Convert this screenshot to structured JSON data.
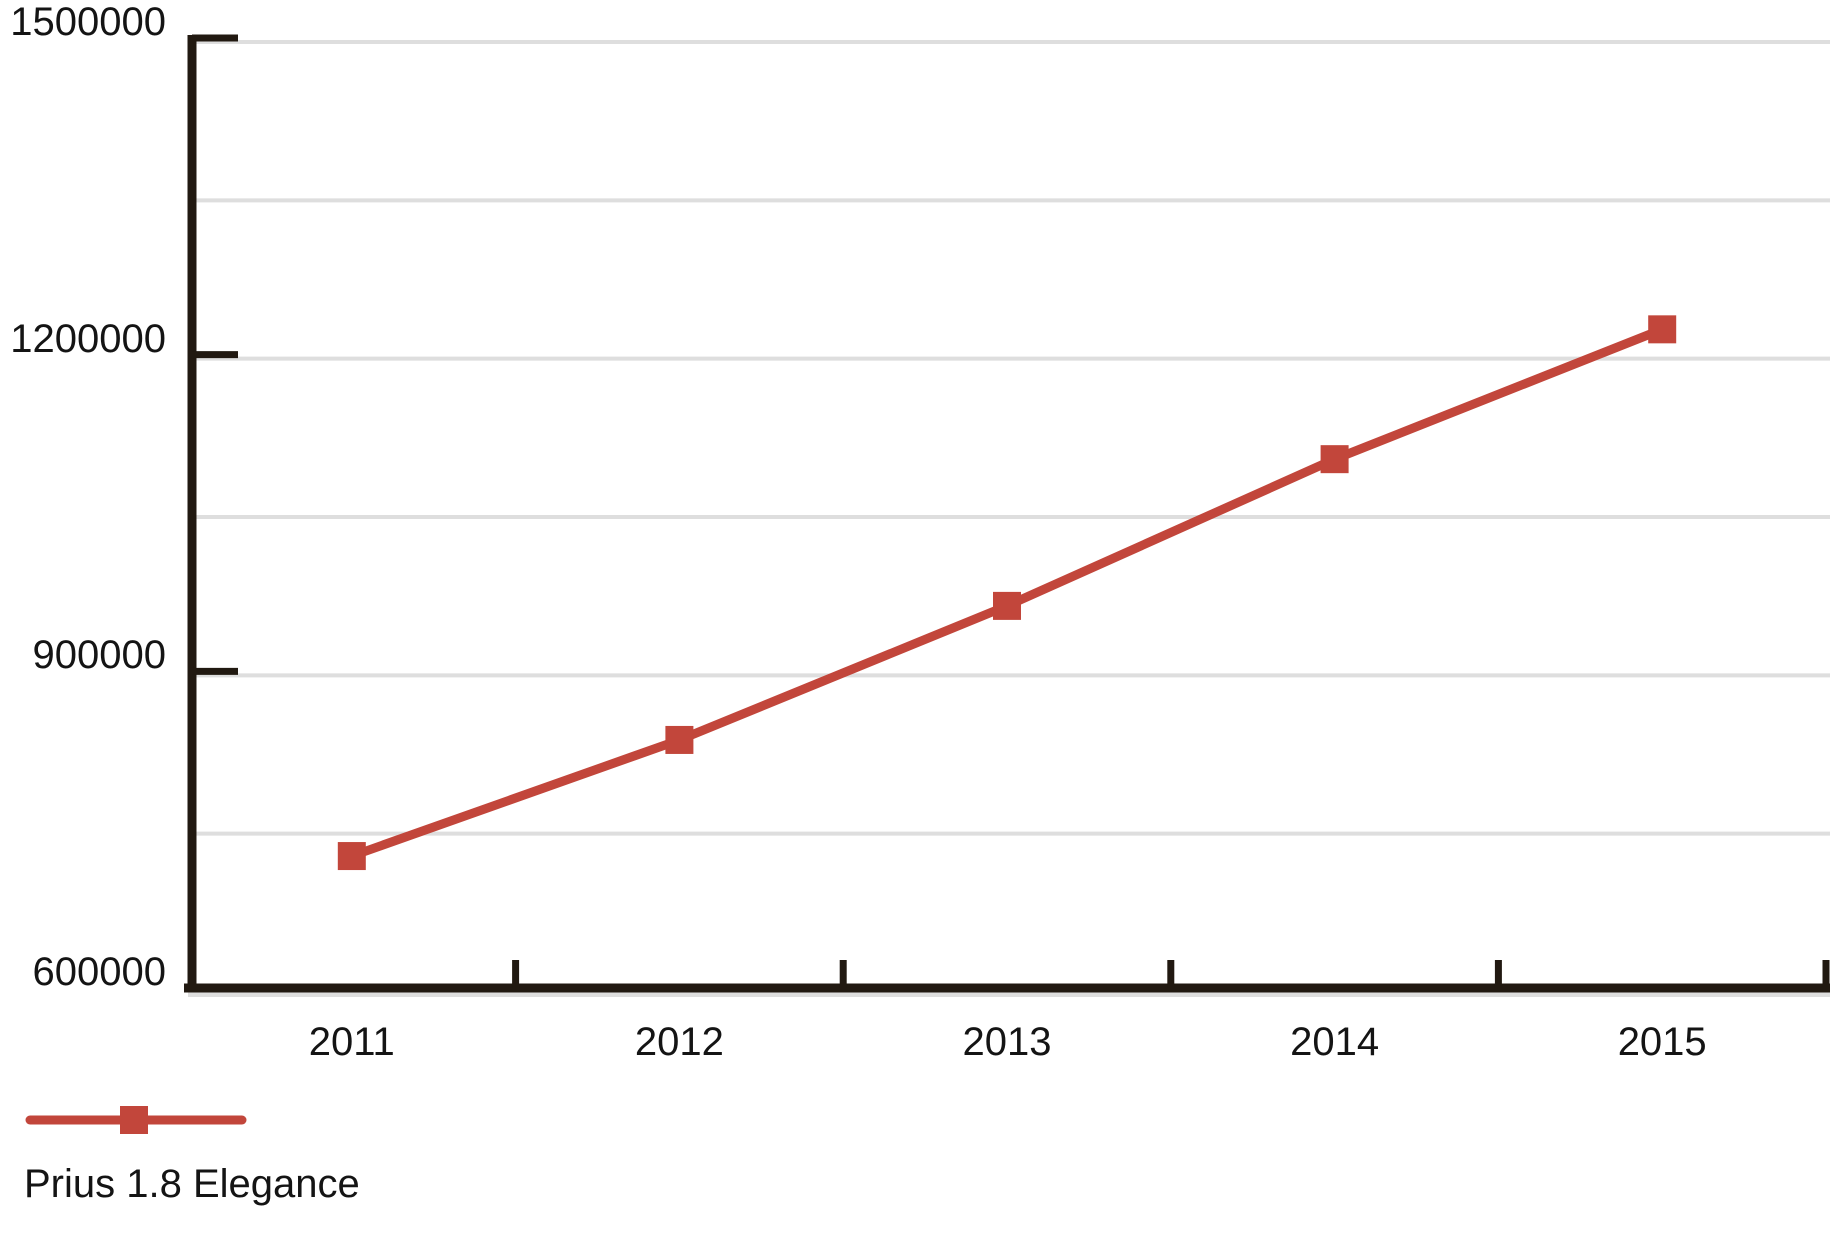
{
  "chart_data": {
    "type": "line",
    "title": "",
    "xlabel": "",
    "ylabel": "",
    "categories": [
      "2011",
      "2012",
      "2013",
      "2014",
      "2015"
    ],
    "series": [
      {
        "name": "Prius 1.8 Elegance",
        "marker": "square",
        "values": [
          725000,
          835000,
          962000,
          1101000,
          1224000
        ]
      }
    ],
    "ylim": [
      600000,
      1500000
    ],
    "y_tick_values": [
      1500000,
      1200000,
      900000,
      600000
    ],
    "y_tick_labels": [
      "1500000",
      "1200000",
      "900000",
      "600000"
    ],
    "y_gridline_step": 150000,
    "grid": true,
    "legend_position": "bottom-left"
  },
  "legend": {
    "label": "Prius 1.8 Elegance"
  },
  "colors": {
    "series": "#C2463B",
    "grid": "#DEDEDE",
    "axis": "#211911",
    "text": "#141414",
    "background": "#FFFFFF"
  }
}
